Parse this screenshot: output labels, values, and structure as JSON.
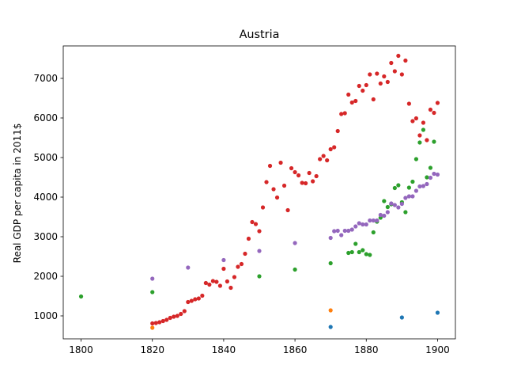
{
  "chart_data": {
    "type": "scatter",
    "title": "Austria",
    "xlabel": "",
    "ylabel": "Real GDP per capita in 2011$",
    "xlim": [
      1795,
      1905
    ],
    "ylim": [
      420,
      7820
    ],
    "xticks": [
      1800,
      1820,
      1840,
      1860,
      1880,
      1900
    ],
    "yticks": [
      1000,
      2000,
      3000,
      4000,
      5000,
      6000,
      7000
    ],
    "grid": false,
    "series": [
      {
        "color": "#1f77b4",
        "points": [
          [
            1870,
            720
          ],
          [
            1890,
            960
          ],
          [
            1900,
            1080
          ]
        ]
      },
      {
        "color": "#ff7f0e",
        "points": [
          [
            1820,
            700
          ],
          [
            1870,
            1140
          ]
        ]
      },
      {
        "color": "#2ca02c",
        "points": [
          [
            1800,
            1490
          ],
          [
            1820,
            1600
          ],
          [
            1850,
            2000
          ],
          [
            1860,
            2170
          ],
          [
            1870,
            2330
          ],
          [
            1875,
            2590
          ],
          [
            1876,
            2610
          ],
          [
            1877,
            2820
          ],
          [
            1878,
            2610
          ],
          [
            1879,
            2660
          ],
          [
            1880,
            2560
          ],
          [
            1881,
            2540
          ],
          [
            1882,
            3110
          ],
          [
            1883,
            3380
          ],
          [
            1884,
            3480
          ],
          [
            1885,
            3900
          ],
          [
            1886,
            3750
          ],
          [
            1887,
            3820
          ],
          [
            1888,
            4230
          ],
          [
            1889,
            4300
          ],
          [
            1890,
            3870
          ],
          [
            1891,
            3620
          ],
          [
            1892,
            4240
          ],
          [
            1893,
            4390
          ],
          [
            1894,
            4960
          ],
          [
            1895,
            5380
          ],
          [
            1896,
            5700
          ],
          [
            1897,
            4500
          ],
          [
            1898,
            4740
          ],
          [
            1899,
            5400
          ]
        ]
      },
      {
        "color": "#d62728",
        "points": [
          [
            1820,
            810
          ],
          [
            1821,
            820
          ],
          [
            1822,
            840
          ],
          [
            1823,
            870
          ],
          [
            1824,
            900
          ],
          [
            1825,
            950
          ],
          [
            1826,
            980
          ],
          [
            1827,
            1000
          ],
          [
            1828,
            1050
          ],
          [
            1829,
            1120
          ],
          [
            1830,
            1350
          ],
          [
            1831,
            1380
          ],
          [
            1832,
            1420
          ],
          [
            1833,
            1440
          ],
          [
            1834,
            1510
          ],
          [
            1835,
            1830
          ],
          [
            1836,
            1790
          ],
          [
            1837,
            1880
          ],
          [
            1838,
            1860
          ],
          [
            1839,
            1760
          ],
          [
            1840,
            2190
          ],
          [
            1841,
            1870
          ],
          [
            1842,
            1710
          ],
          [
            1843,
            1980
          ],
          [
            1844,
            2240
          ],
          [
            1845,
            2310
          ],
          [
            1846,
            2570
          ],
          [
            1847,
            2950
          ],
          [
            1848,
            3370
          ],
          [
            1849,
            3320
          ],
          [
            1850,
            3140
          ],
          [
            1851,
            3740
          ],
          [
            1852,
            4380
          ],
          [
            1853,
            4790
          ],
          [
            1854,
            4200
          ],
          [
            1855,
            3990
          ],
          [
            1856,
            4870
          ],
          [
            1857,
            4290
          ],
          [
            1858,
            3670
          ],
          [
            1859,
            4730
          ],
          [
            1860,
            4630
          ],
          [
            1861,
            4550
          ],
          [
            1862,
            4360
          ],
          [
            1863,
            4350
          ],
          [
            1864,
            4610
          ],
          [
            1865,
            4400
          ],
          [
            1866,
            4530
          ],
          [
            1867,
            4960
          ],
          [
            1868,
            5040
          ],
          [
            1869,
            4930
          ],
          [
            1870,
            5210
          ],
          [
            1871,
            5260
          ],
          [
            1872,
            5670
          ],
          [
            1873,
            6100
          ],
          [
            1874,
            6120
          ],
          [
            1875,
            6590
          ],
          [
            1876,
            6390
          ],
          [
            1877,
            6430
          ],
          [
            1878,
            6810
          ],
          [
            1879,
            6690
          ],
          [
            1880,
            6830
          ],
          [
            1881,
            7100
          ],
          [
            1882,
            6470
          ],
          [
            1883,
            7120
          ],
          [
            1884,
            6870
          ],
          [
            1885,
            7050
          ],
          [
            1886,
            6910
          ],
          [
            1887,
            7390
          ],
          [
            1888,
            7180
          ],
          [
            1889,
            7570
          ],
          [
            1890,
            7100
          ],
          [
            1891,
            7450
          ],
          [
            1892,
            6360
          ],
          [
            1893,
            5920
          ],
          [
            1894,
            5990
          ],
          [
            1895,
            5560
          ],
          [
            1896,
            5880
          ],
          [
            1897,
            5440
          ],
          [
            1898,
            6210
          ],
          [
            1899,
            6130
          ],
          [
            1900,
            6380
          ]
        ]
      },
      {
        "color": "#9467bd",
        "points": [
          [
            1820,
            1940
          ],
          [
            1830,
            2220
          ],
          [
            1840,
            2410
          ],
          [
            1850,
            2640
          ],
          [
            1860,
            2840
          ],
          [
            1870,
            2970
          ],
          [
            1871,
            3140
          ],
          [
            1872,
            3150
          ],
          [
            1873,
            3040
          ],
          [
            1874,
            3150
          ],
          [
            1875,
            3150
          ],
          [
            1876,
            3180
          ],
          [
            1877,
            3260
          ],
          [
            1878,
            3340
          ],
          [
            1879,
            3310
          ],
          [
            1880,
            3310
          ],
          [
            1881,
            3410
          ],
          [
            1882,
            3410
          ],
          [
            1883,
            3410
          ],
          [
            1884,
            3550
          ],
          [
            1885,
            3530
          ],
          [
            1886,
            3620
          ],
          [
            1887,
            3840
          ],
          [
            1888,
            3800
          ],
          [
            1889,
            3740
          ],
          [
            1890,
            3830
          ],
          [
            1891,
            3980
          ],
          [
            1892,
            4020
          ],
          [
            1893,
            4020
          ],
          [
            1894,
            4160
          ],
          [
            1895,
            4270
          ],
          [
            1896,
            4280
          ],
          [
            1897,
            4330
          ],
          [
            1898,
            4490
          ],
          [
            1899,
            4590
          ],
          [
            1900,
            4570
          ]
        ]
      }
    ]
  }
}
